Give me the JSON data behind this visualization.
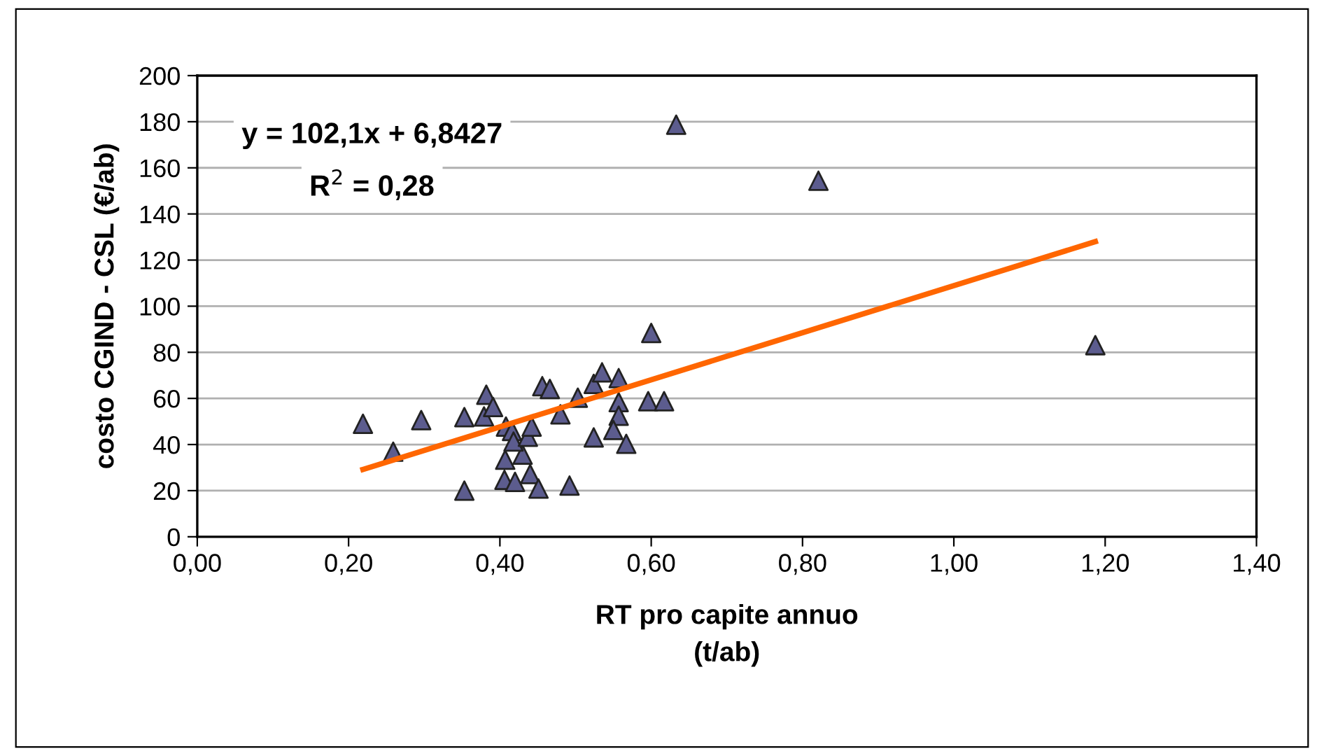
{
  "chart_data": {
    "type": "scatter",
    "xlabel": "RT pro capite annuo\n(t/ab)",
    "ylabel": "costo CGIND - CSL (€/ab)",
    "annotations": [
      "y = 102,1x + 6,8427",
      "R$^{2}$ = 0,28"
    ],
    "xlim": [
      0,
      1.4
    ],
    "ylim": [
      0,
      200
    ],
    "xticks": [
      {
        "value": 0,
        "label": "0,00"
      },
      {
        "value": 0.2,
        "label": "0,20"
      },
      {
        "value": 0.4,
        "label": "0,40"
      },
      {
        "value": 0.6,
        "label": "0,60"
      },
      {
        "value": 0.8,
        "label": "0,80"
      },
      {
        "value": 1.0,
        "label": "1,00"
      },
      {
        "value": 1.2,
        "label": "1,20"
      },
      {
        "value": 1.4,
        "label": "1,40"
      }
    ],
    "yticks": [
      0,
      20,
      40,
      60,
      80,
      100,
      120,
      140,
      160,
      180,
      200
    ],
    "grid": "y",
    "marker": "triangle",
    "legend": false,
    "series": [
      {
        "color": "#5c5c8e",
        "x": [
          0.633,
          0.821,
          1.187,
          0.6,
          0.219,
          0.259,
          0.296,
          0.353,
          0.353,
          0.379,
          0.382,
          0.391,
          0.408,
          0.416,
          0.407,
          0.406,
          0.42,
          0.43,
          0.418,
          0.437,
          0.442,
          0.44,
          0.451,
          0.456,
          0.466,
          0.48,
          0.492,
          0.503,
          0.524,
          0.535,
          0.524,
          0.557,
          0.557,
          0.557,
          0.55,
          0.567,
          0.596,
          0.617
        ],
        "values": [
          178.7,
          154.4,
          83.1,
          88.4,
          49,
          36.9,
          50.6,
          20,
          51.9,
          52.2,
          61.6,
          56.3,
          47.8,
          45.9,
          33.4,
          24.7,
          23.8,
          35.6,
          41.3,
          43.4,
          47.8,
          27.2,
          20.9,
          65.3,
          64.1,
          53.1,
          22.2,
          60.3,
          66.3,
          71.3,
          43.1,
          68.8,
          58.4,
          52.5,
          46.3,
          40.3,
          58.8,
          58.8
        ]
      },
      {
        "type": "line",
        "color": "#ff6600",
        "line_style": "solid",
        "marker": "none",
        "x": [
          0.219,
          1.187
        ],
        "values": [
          29.2,
          128.0
        ]
      }
    ]
  }
}
